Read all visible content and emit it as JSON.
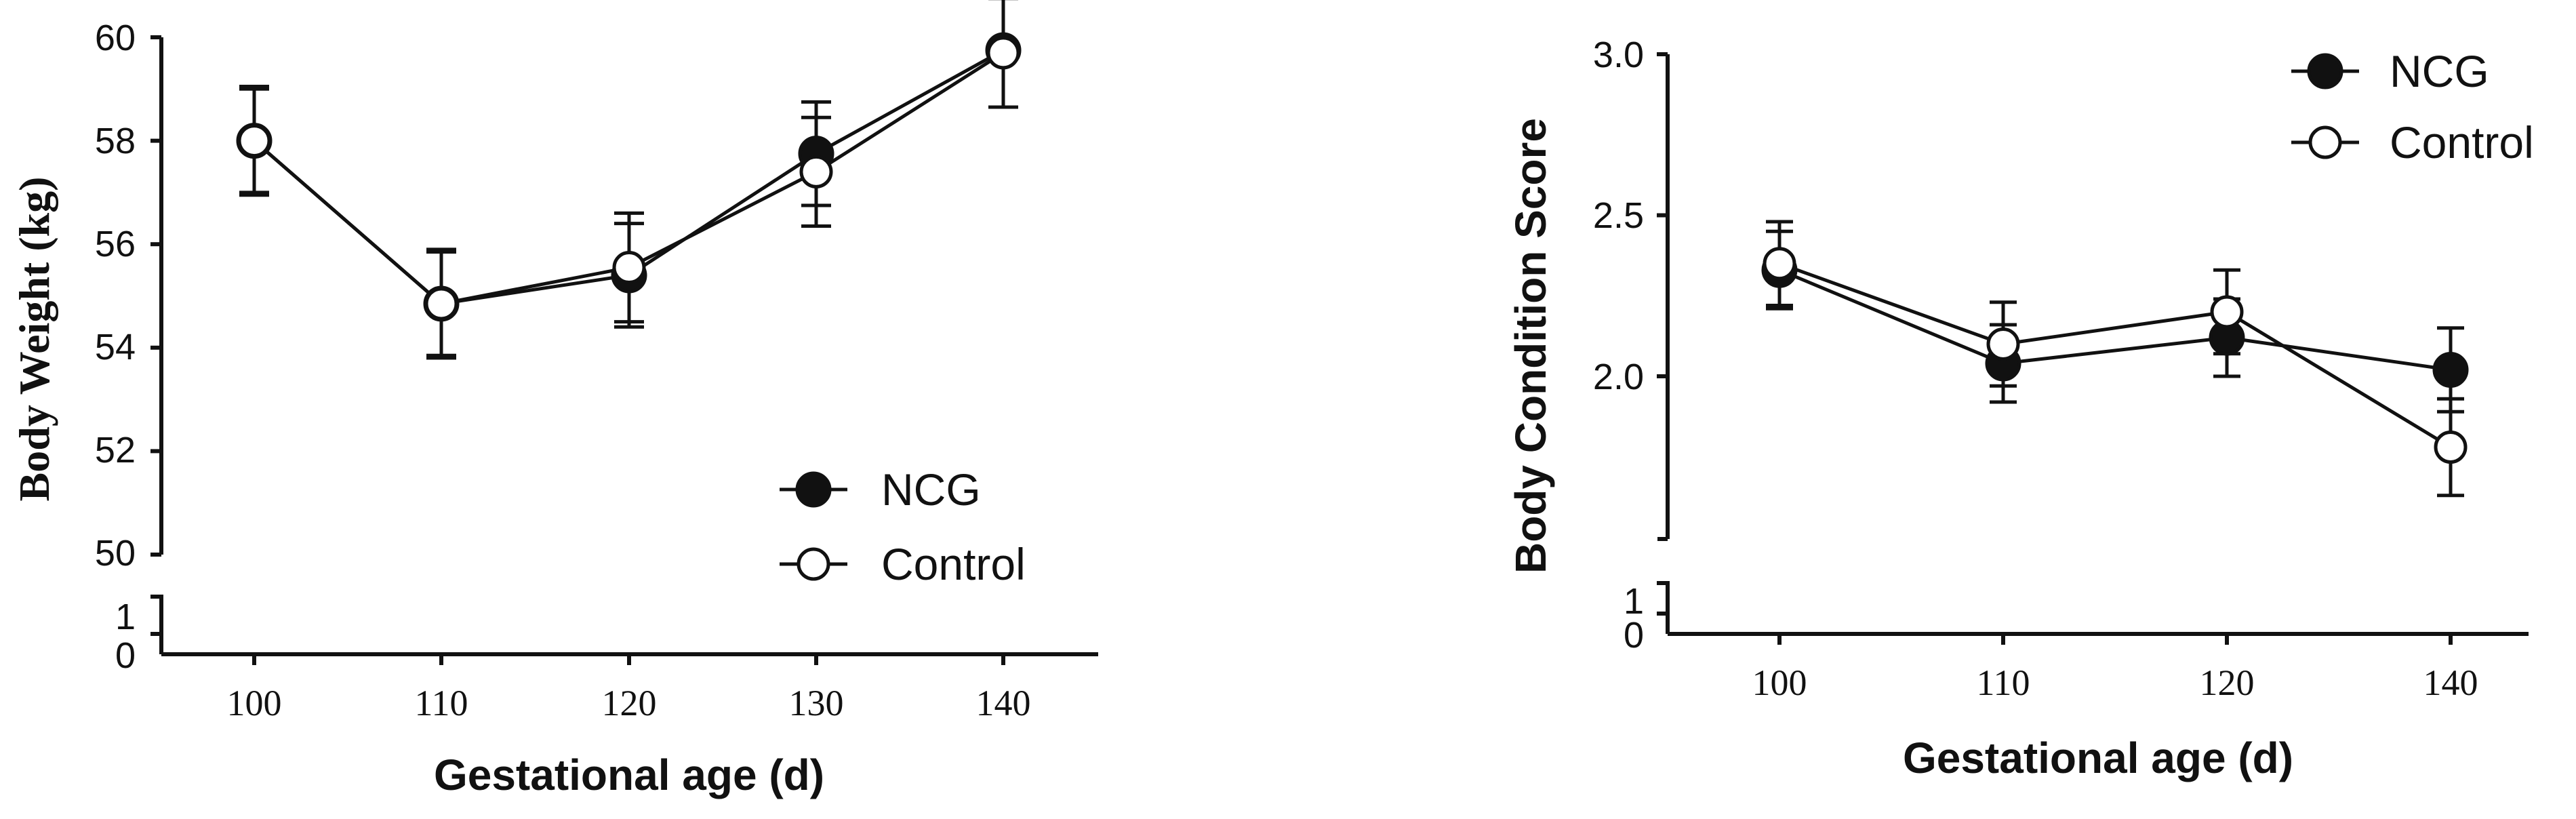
{
  "chart_data": [
    {
      "type": "line",
      "xlabel": "Gestational age (d)",
      "ylabel": "Body Weight (kg)",
      "x": [
        100,
        110,
        120,
        130,
        140
      ],
      "xticks": [
        "100",
        "110",
        "120",
        "130",
        "140"
      ],
      "ylim": [
        50,
        60
      ],
      "yticks": [
        "60",
        "58",
        "56",
        "54",
        "52",
        "50"
      ],
      "ybreak_ticks": [
        "1",
        "0"
      ],
      "legend_position": "bottom-right",
      "series": [
        {
          "name": "NCG",
          "marker": "filled-circle",
          "values": [
            58.0,
            54.85,
            55.4,
            57.75,
            59.75
          ],
          "errors": [
            1.05,
            1.0,
            1.0,
            1.0,
            1.1
          ]
        },
        {
          "name": "Control",
          "marker": "open-circle",
          "values": [
            58.0,
            54.85,
            55.55,
            57.4,
            59.7
          ],
          "errors": [
            1.0,
            1.05,
            1.05,
            1.05,
            1.05
          ]
        }
      ]
    },
    {
      "type": "line",
      "xlabel": "Gestational age (d)",
      "ylabel": "Body Condition Score",
      "x": [
        100,
        110,
        120,
        140
      ],
      "xticks": [
        "100",
        "110",
        "120",
        "140"
      ],
      "ylim": [
        1.5,
        3.0
      ],
      "yticks": [
        "3.0",
        "2.5",
        "2.0"
      ],
      "ybreak_ticks": [
        "1",
        "0"
      ],
      "legend_position": "top-right",
      "series": [
        {
          "name": "NCG",
          "marker": "filled-circle",
          "values": [
            2.33,
            2.04,
            2.12,
            2.02
          ],
          "errors": [
            0.12,
            0.12,
            0.12,
            0.13
          ]
        },
        {
          "name": "Control",
          "marker": "open-circle",
          "values": [
            2.35,
            2.1,
            2.2,
            1.78
          ],
          "errors": [
            0.13,
            0.13,
            0.13,
            0.15
          ]
        }
      ]
    }
  ]
}
